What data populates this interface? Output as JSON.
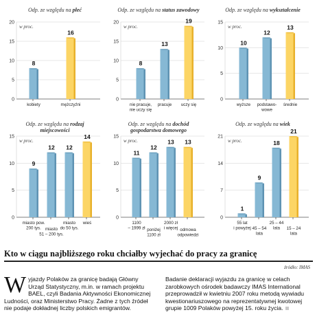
{
  "chart_data": [
    {
      "type": "bar",
      "title_prefix": "Odp. ze względu na",
      "title_bold": "płeć",
      "unit_label": "w proc.",
      "yticks": [
        0,
        5,
        10,
        15,
        20
      ],
      "ylim": [
        0,
        20
      ],
      "categories": [
        [
          "kobiety"
        ],
        [
          "mężczyźni"
        ]
      ],
      "values": [
        8,
        16
      ],
      "highlight_index": 1
    },
    {
      "type": "bar",
      "title_prefix": "Odp. ze względu na",
      "title_bold": "status zawodowy",
      "unit_label": "w proc.",
      "yticks": [
        0,
        5,
        10,
        15,
        20
      ],
      "ylim": [
        0,
        20
      ],
      "categories": [
        [
          "nie pracuje,",
          "nie uczy się"
        ],
        [
          "pracuje"
        ],
        [
          "uczy się"
        ]
      ],
      "values": [
        8,
        13,
        19
      ],
      "highlight_index": 2
    },
    {
      "type": "bar",
      "title_prefix": "Odp. ze względu na",
      "title_bold": "wykształcenie",
      "unit_label": "w proc.",
      "yticks": [
        0,
        5,
        10,
        15
      ],
      "ylim": [
        0,
        15
      ],
      "categories": [
        [
          "wyższe"
        ],
        [
          "podstawo-",
          "wowe"
        ],
        [
          "średnie"
        ]
      ],
      "values": [
        10,
        12,
        13
      ],
      "highlight_index": 2
    },
    {
      "type": "bar",
      "title_prefix": "Odp. ze względu na",
      "title_bold": "rodzaj miejscowości",
      "unit_label": "w proc.",
      "yticks": [
        0,
        5,
        10,
        15
      ],
      "ylim": [
        0,
        15
      ],
      "categories": [
        [
          "miasto pow.",
          "200 tys."
        ],
        [
          "miasto",
          "51 – 200 tys."
        ],
        [
          "miasto",
          "do 50 tys."
        ],
        [
          "wieś"
        ]
      ],
      "values": [
        9,
        12,
        12,
        14
      ],
      "highlight_index": 3
    },
    {
      "type": "bar",
      "title_prefix": "Odp. ze względu na",
      "title_bold": "dochód gospodarstwa domowego",
      "unit_label": "w proc.",
      "yticks": [
        0,
        5,
        10,
        15
      ],
      "ylim": [
        0,
        15
      ],
      "categories": [
        [
          "1100",
          "– 1999 zł"
        ],
        [
          "poniżej",
          "1100 zł"
        ],
        [
          "2000 zł",
          "i więcej"
        ],
        [
          "odmowa",
          "odpowiedzi"
        ]
      ],
      "values": [
        11,
        12,
        13,
        13
      ],
      "highlight_index": 3
    },
    {
      "type": "bar",
      "title_prefix": "Odp. ze względu na",
      "title_bold": "wiek",
      "unit_label": "w proc.",
      "yticks": [
        0,
        7,
        14,
        21
      ],
      "ylim": [
        0,
        21
      ],
      "categories": [
        [
          "55 lat",
          "i powyżej"
        ],
        [
          "45 – 54",
          "lata"
        ],
        [
          "25 – 44",
          "lata"
        ],
        [
          "15 – 24",
          "lata"
        ]
      ],
      "values": [
        1,
        9,
        18,
        21
      ],
      "highlight_index": 3
    }
  ],
  "article": {
    "headline": "Kto w ciągu najbliższego roku chciałby wyjechać do pracy za granicę",
    "source": "źródło: IMAS",
    "dropcap": "W",
    "col1": "yjazdy Polaków za granicę badają Główny Urząd Statystyczny, m.in. w ramach projektu BAEL, czyli Badania Aktywności Ekonomicznej Ludności, oraz Ministerstwo Pracy. Żadne z tych źródeł nie podaje dokładnej liczby polskich emigrantów.",
    "col2": "Badanie deklaracji wyjazdu za granicę w celach zarobkowych ośrodek badawczy IMAS International przeprowadził w kwietniu 2007 roku metodą wywiadu kwestionariuszowego na reprezentatywnej kwotowej grupie 1009 Polaków powyżej 15. roku życia."
  },
  "colors": {
    "bar": "#86b8d4",
    "bar_dark": "#5f93b3",
    "highlight": "#fcd565",
    "highlight_dark": "#e8b12c",
    "grid": "#cfcfcf",
    "axis": "#555555"
  }
}
